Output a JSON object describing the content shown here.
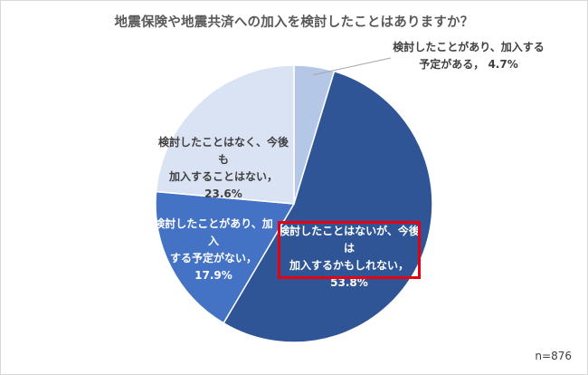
{
  "chart_data": {
    "type": "pie",
    "title": "地震保険や地震共済への加入を検討したことはありますか？",
    "start_angle_deg": 0,
    "direction": "clockwise",
    "slices": [
      {
        "label_lines": [
          "検討したことがあり、加入する",
          "予定がある，"
        ],
        "value_text": "4.7%",
        "value": 4.7,
        "color": "#b4c7e7"
      },
      {
        "label_lines": [
          "検討したことはないが、今後は",
          "加入するかもしれない，"
        ],
        "value_text": "53.8%",
        "value": 53.8,
        "color": "#2f5597"
      },
      {
        "label_lines": [
          "検討したことがあり、加入",
          "する予定がない，"
        ],
        "value_text": "17.9%",
        "value": 17.9,
        "color": "#4472c4"
      },
      {
        "label_lines": [
          "検討したことはなく、今後も",
          "加入することはない，"
        ],
        "value_text": "23.6%",
        "value": 23.6,
        "color": "#dae3f3"
      }
    ],
    "highlighted_slice": 1,
    "highlight_color": "#e60012",
    "note": "n=876"
  }
}
